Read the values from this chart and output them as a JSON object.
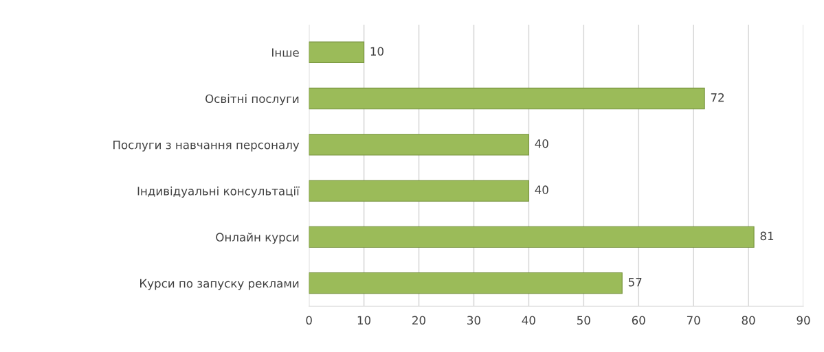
{
  "chart_data": {
    "type": "bar",
    "orientation": "horizontal",
    "categories": [
      "Інше",
      "Освітні послуги",
      "Послуги з навчання персоналу",
      "Індивідуальні консультації",
      "Онлайн курси",
      "Курси по запуску реклами"
    ],
    "values": [
      10,
      72,
      40,
      40,
      81,
      57
    ],
    "color": "#9bbb59",
    "xlim": [
      0,
      90
    ],
    "xticks": [
      0,
      10,
      20,
      30,
      40,
      50,
      60,
      70,
      80,
      90
    ],
    "grid": "x",
    "data_labels": true
  }
}
